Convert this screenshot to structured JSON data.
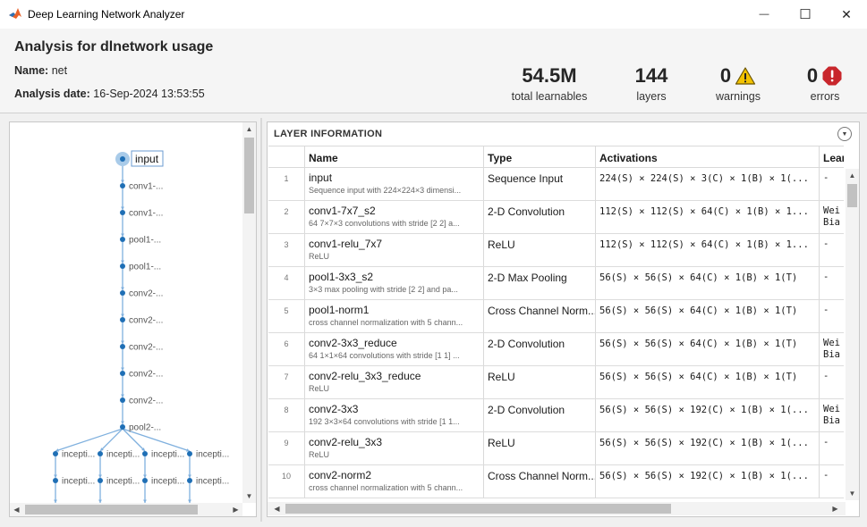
{
  "window": {
    "title": "Deep Learning Network Analyzer",
    "minimize_glyph": "—",
    "maximize_glyph": "☐",
    "close_glyph": "✕"
  },
  "header": {
    "title": "Analysis for dlnetwork usage",
    "name_label": "Name:",
    "name_value": "net",
    "date_label": "Analysis date:",
    "date_value": "16-Sep-2024 13:53:55"
  },
  "stats": {
    "learnables": {
      "value": "54.5M",
      "label": "total learnables"
    },
    "layers": {
      "value": "144",
      "label": "layers"
    },
    "warnings": {
      "value": "0",
      "label": "warnings",
      "icon": "warning-triangle-icon",
      "color": "#f2c200"
    },
    "errors": {
      "value": "0",
      "label": "errors",
      "icon": "error-octagon-icon",
      "color": "#c8262c"
    }
  },
  "graph": {
    "input_label": "input",
    "chain_labels": [
      "conv1-...",
      "conv1-...",
      "pool1-...",
      "pool1-...",
      "conv2-...",
      "conv2-...",
      "conv2-...",
      "conv2-...",
      "conv2-...",
      "pool2-..."
    ],
    "branch_row1": [
      "incepti...",
      "incepti...",
      "incepti...",
      "incepti..."
    ],
    "branch_row2": [
      "incepti...",
      "incepti...",
      "incepti...",
      "incepti..."
    ],
    "node_color": "#1f6fb5",
    "edge_color": "#7fb0de"
  },
  "layer_info": {
    "section_title": "LAYER INFORMATION",
    "columns": {
      "index": "",
      "name": "Name",
      "type": "Type",
      "activations": "Activations",
      "learnables": "Lear"
    },
    "rows": [
      {
        "index": "1",
        "name": "input",
        "desc": "Sequence input with 224×224×3 dimensi...",
        "type": "Sequence Input",
        "activations": "224(S) × 224(S) × 3(C) × 1(B) × 1(...",
        "learnables": "-"
      },
      {
        "index": "2",
        "name": "conv1-7x7_s2",
        "desc": "64 7×7×3 convolutions with stride [2 2] a...",
        "type": "2-D Convolution",
        "activations": "112(S) × 112(S) × 64(C) × 1(B) × 1...",
        "learnables": "Wei\nBia"
      },
      {
        "index": "3",
        "name": "conv1-relu_7x7",
        "desc": "ReLU",
        "type": "ReLU",
        "activations": "112(S) × 112(S) × 64(C) × 1(B) × 1...",
        "learnables": "-"
      },
      {
        "index": "4",
        "name": "pool1-3x3_s2",
        "desc": "3×3 max pooling with stride [2 2] and pa...",
        "type": "2-D Max Pooling",
        "activations": "56(S) × 56(S) × 64(C) × 1(B) × 1(T)",
        "learnables": "-"
      },
      {
        "index": "5",
        "name": "pool1-norm1",
        "desc": "cross channel normalization with 5 chann...",
        "type": "Cross Channel Norm...",
        "activations": "56(S) × 56(S) × 64(C) × 1(B) × 1(T)",
        "learnables": "-"
      },
      {
        "index": "6",
        "name": "conv2-3x3_reduce",
        "desc": "64 1×1×64 convolutions with stride [1 1] ...",
        "type": "2-D Convolution",
        "activations": "56(S) × 56(S) × 64(C) × 1(B) × 1(T)",
        "learnables": "Wei\nBia"
      },
      {
        "index": "7",
        "name": "conv2-relu_3x3_reduce",
        "desc": "ReLU",
        "type": "ReLU",
        "activations": "56(S) × 56(S) × 64(C) × 1(B) × 1(T)",
        "learnables": "-"
      },
      {
        "index": "8",
        "name": "conv2-3x3",
        "desc": "192 3×3×64 convolutions with stride [1 1...",
        "type": "2-D Convolution",
        "activations": "56(S) × 56(S) × 192(C) × 1(B) × 1(...",
        "learnables": "Wei\nBia"
      },
      {
        "index": "9",
        "name": "conv2-relu_3x3",
        "desc": "ReLU",
        "type": "ReLU",
        "activations": "56(S) × 56(S) × 192(C) × 1(B) × 1(...",
        "learnables": "-"
      },
      {
        "index": "10",
        "name": "conv2-norm2",
        "desc": "cross channel normalization with 5 chann...",
        "type": "Cross Channel Norm...",
        "activations": "56(S) × 56(S) × 192(C) × 1(B) × 1(...",
        "learnables": "-"
      }
    ]
  },
  "scroll": {
    "up_glyph": "▲",
    "down_glyph": "▼",
    "left_glyph": "◀",
    "right_glyph": "▶"
  }
}
